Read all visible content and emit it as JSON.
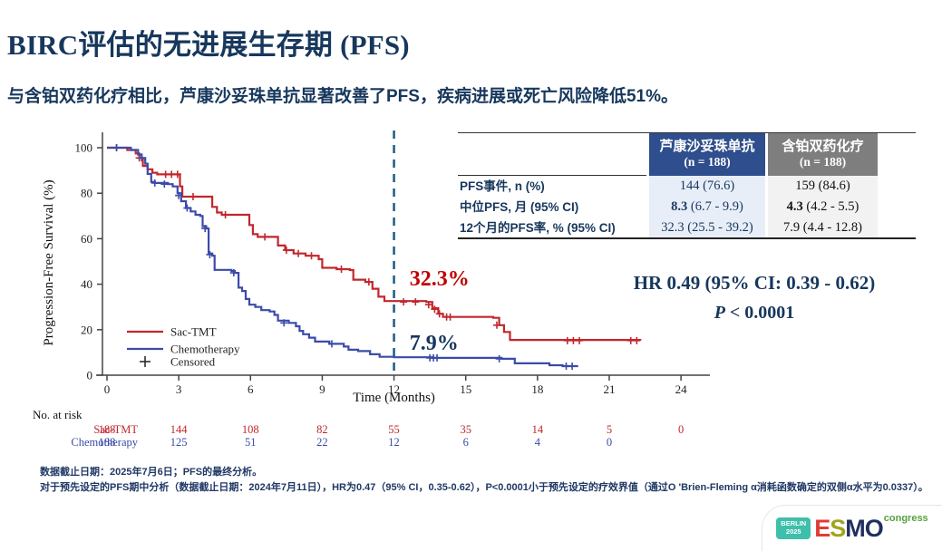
{
  "colors": {
    "navy": "#17375D",
    "sac_red": "#C1272D",
    "chemo_blue": "#3B4BA8",
    "table_header_blue": "#2F4E8D",
    "table_header_gray": "#7E7E7E",
    "teal_badge": "#3EBFAC",
    "congress_green": "#56A13C"
  },
  "header": {
    "title": "BIRC评估的无进展生存期 (PFS)",
    "subtitle": "与含铂双药化疗相比，芦康沙妥珠单抗显著改善了PFS，疾病进展或死亡风险降低51%。"
  },
  "table": {
    "columns": [
      {
        "name": "芦康沙妥珠单抗",
        "n": "(n = 188)"
      },
      {
        "name": "含铂双药化疗",
        "n": "(n = 188)"
      }
    ],
    "rows": [
      {
        "label": "PFS事件, n (%)",
        "c1_strong": "",
        "c1": "144 (76.6)",
        "c2_strong": "",
        "c2": "159 (84.6)"
      },
      {
        "label": "中位PFS, 月 (95% CI)",
        "c1_strong": "8.3",
        "c1": " (6.7 - 9.9)",
        "c2_strong": "4.3",
        "c2": " (4.2 - 5.5)"
      },
      {
        "label": "12个月的PFS率, % (95% CI)",
        "c1_strong": "",
        "c1": "32.3 (25.5 - 39.2)",
        "c2_strong": "",
        "c2": "7.9 (4.4 - 12.8)"
      }
    ]
  },
  "stats": {
    "hr": "HR 0.49 (95% CI: 0.39 - 0.62)",
    "p_label": "P",
    "p_value": " < 0.0001"
  },
  "chart_data": {
    "type": "line",
    "subtype": "kaplan-meier-step",
    "xlabel": "Time (Months)",
    "ylabel": "Progression-Free Survival (%)",
    "xlim": [
      0,
      25.5
    ],
    "ylim": [
      0,
      105
    ],
    "xticks": [
      0,
      3,
      6,
      9,
      12,
      15,
      18,
      21,
      24
    ],
    "yticks": [
      0,
      20,
      40,
      60,
      80,
      100
    ],
    "grid": false,
    "reference_line_x": 12,
    "colors": {
      "ref": "#1E5C85",
      "axis": "#444",
      "tick_text": "#222"
    },
    "annotations": [
      {
        "text": "32.3%",
        "x": 12.65,
        "y": 39.4,
        "color": "#C00000"
      },
      {
        "text": "7.9%",
        "x": 12.65,
        "y": 11.2,
        "color": "#17375D"
      }
    ],
    "legend": {
      "position": "lower-left",
      "items": [
        "Sac-TMT",
        "Chemotherapy",
        "Censored"
      ]
    },
    "series": [
      {
        "name": "Sac-TMT",
        "color": "#C1272D",
        "steps": [
          [
            0,
            100
          ],
          [
            0.85,
            99
          ],
          [
            1.2,
            97.5
          ],
          [
            1.35,
            95.5
          ],
          [
            1.5,
            92
          ],
          [
            1.7,
            90.5
          ],
          [
            1.9,
            89
          ],
          [
            2.1,
            88.3
          ],
          [
            3.0,
            88.3
          ],
          [
            3.05,
            83
          ],
          [
            3.15,
            78.5
          ],
          [
            4.25,
            78.5
          ],
          [
            4.4,
            74
          ],
          [
            4.6,
            71.5
          ],
          [
            4.8,
            70.5
          ],
          [
            5.75,
            70.5
          ],
          [
            5.95,
            66
          ],
          [
            6.1,
            62
          ],
          [
            6.3,
            60.8
          ],
          [
            6.95,
            60.8
          ],
          [
            7.15,
            57
          ],
          [
            7.45,
            55
          ],
          [
            7.8,
            53.5
          ],
          [
            8.3,
            52.5
          ],
          [
            8.85,
            51
          ],
          [
            9.0,
            47.2
          ],
          [
            9.6,
            46.6
          ],
          [
            10.15,
            46.2
          ],
          [
            10.3,
            42
          ],
          [
            10.8,
            41
          ],
          [
            11.1,
            38
          ],
          [
            11.35,
            34.5
          ],
          [
            11.6,
            32.6
          ],
          [
            13.35,
            32.2
          ],
          [
            13.6,
            29.5
          ],
          [
            13.85,
            27
          ],
          [
            14.05,
            25.6
          ],
          [
            16.15,
            25.2
          ],
          [
            16.4,
            22
          ],
          [
            16.6,
            19
          ],
          [
            16.85,
            15.5
          ],
          [
            22.3,
            15.2
          ]
        ],
        "censors": [
          [
            0.4,
            100
          ],
          [
            1.35,
            95.5
          ],
          [
            2.45,
            88.3
          ],
          [
            2.7,
            88.3
          ],
          [
            2.95,
            88.3
          ],
          [
            3.6,
            78.5
          ],
          [
            4.95,
            70.5
          ],
          [
            6.6,
            60.8
          ],
          [
            7.5,
            55
          ],
          [
            8.0,
            53.5
          ],
          [
            8.55,
            52.5
          ],
          [
            9.8,
            46.6
          ],
          [
            10.95,
            41
          ],
          [
            12.4,
            32.2
          ],
          [
            12.9,
            32.2
          ],
          [
            13.45,
            31
          ],
          [
            13.7,
            29
          ],
          [
            13.9,
            27
          ],
          [
            14.2,
            25.6
          ],
          [
            14.35,
            25.6
          ],
          [
            16.3,
            22
          ],
          [
            19.25,
            15.2
          ],
          [
            19.5,
            15.2
          ],
          [
            19.75,
            15.2
          ],
          [
            21.9,
            15.2
          ],
          [
            22.15,
            15.2
          ]
        ]
      },
      {
        "name": "Chemotherapy",
        "color": "#3B4BA8",
        "steps": [
          [
            0,
            100
          ],
          [
            1.0,
            99
          ],
          [
            1.3,
            97
          ],
          [
            1.45,
            95.5
          ],
          [
            1.6,
            93
          ],
          [
            1.7,
            88.5
          ],
          [
            1.85,
            85
          ],
          [
            2.0,
            84.5
          ],
          [
            2.55,
            84
          ],
          [
            2.75,
            83
          ],
          [
            2.95,
            80
          ],
          [
            3.1,
            76.5
          ],
          [
            3.3,
            73.5
          ],
          [
            3.5,
            72
          ],
          [
            3.7,
            70.5
          ],
          [
            3.9,
            70
          ],
          [
            4.0,
            65.5
          ],
          [
            4.15,
            64.5
          ],
          [
            4.25,
            53.5
          ],
          [
            4.4,
            52.5
          ],
          [
            4.5,
            46.3
          ],
          [
            5.2,
            45.8
          ],
          [
            5.35,
            45
          ],
          [
            5.5,
            38.5
          ],
          [
            5.65,
            37
          ],
          [
            5.8,
            33.5
          ],
          [
            5.95,
            31
          ],
          [
            6.2,
            30
          ],
          [
            6.45,
            28.6
          ],
          [
            6.8,
            28
          ],
          [
            7.0,
            26.5
          ],
          [
            7.15,
            24
          ],
          [
            7.6,
            23
          ],
          [
            7.9,
            21.5
          ],
          [
            8.05,
            19.5
          ],
          [
            8.2,
            18
          ],
          [
            8.45,
            16.5
          ],
          [
            8.7,
            14.8
          ],
          [
            9.3,
            13.8
          ],
          [
            9.9,
            12.6
          ],
          [
            10.1,
            11.2
          ],
          [
            10.5,
            10.6
          ],
          [
            11.0,
            9.2
          ],
          [
            11.4,
            8.1
          ],
          [
            12.0,
            7.9
          ],
          [
            13.6,
            7.6
          ],
          [
            16.5,
            7.2
          ],
          [
            17.05,
            5.2
          ],
          [
            18.5,
            4.4
          ],
          [
            19.05,
            4.0
          ],
          [
            19.7,
            4.0
          ]
        ],
        "censors": [
          [
            0.4,
            100
          ],
          [
            1.45,
            95.5
          ],
          [
            2.0,
            84.5
          ],
          [
            2.4,
            84
          ],
          [
            3.0,
            79
          ],
          [
            3.35,
            73.5
          ],
          [
            4.1,
            64.5
          ],
          [
            4.3,
            53
          ],
          [
            5.3,
            45
          ],
          [
            7.4,
            23
          ],
          [
            9.4,
            13.8
          ],
          [
            13.5,
            7.6
          ],
          [
            13.65,
            7.6
          ],
          [
            13.8,
            7.6
          ],
          [
            16.4,
            7.2
          ],
          [
            19.2,
            4.0
          ],
          [
            19.45,
            4.0
          ]
        ]
      }
    ],
    "at_risk": {
      "label": "No. at risk",
      "rows": [
        {
          "name": "Sac-TMT",
          "color": "#C1272D",
          "values": [
            188,
            144,
            108,
            82,
            55,
            35,
            14,
            5,
            0
          ]
        },
        {
          "name": "Chemotherapy",
          "color": "#3B4BA8",
          "values": [
            188,
            125,
            51,
            22,
            12,
            6,
            4,
            0
          ]
        }
      ]
    }
  },
  "footnotes": {
    "line1": "数据截止日期：2025年7月6日；PFS的最终分析。",
    "line2": "对于预先设定的PFS期中分析（数据截止日期：2024年7月11日），HR为0.47（95% CI，0.35-0.62），P<0.0001小于预先设定的疗效界值（通过O 'Brien-Fleming α消耗函数确定的双侧α水平为0.0337）。"
  },
  "logo": {
    "badge_line1": "BERLIN",
    "badge_line2": "2025",
    "letters": [
      {
        "ch": "E",
        "color": "#E23B34"
      },
      {
        "ch": "S",
        "color": "#A2A41E"
      },
      {
        "ch": "M",
        "color": "#1F2F5E"
      },
      {
        "ch": "O",
        "color": "#1F2F5E"
      }
    ],
    "congress": "congress"
  }
}
